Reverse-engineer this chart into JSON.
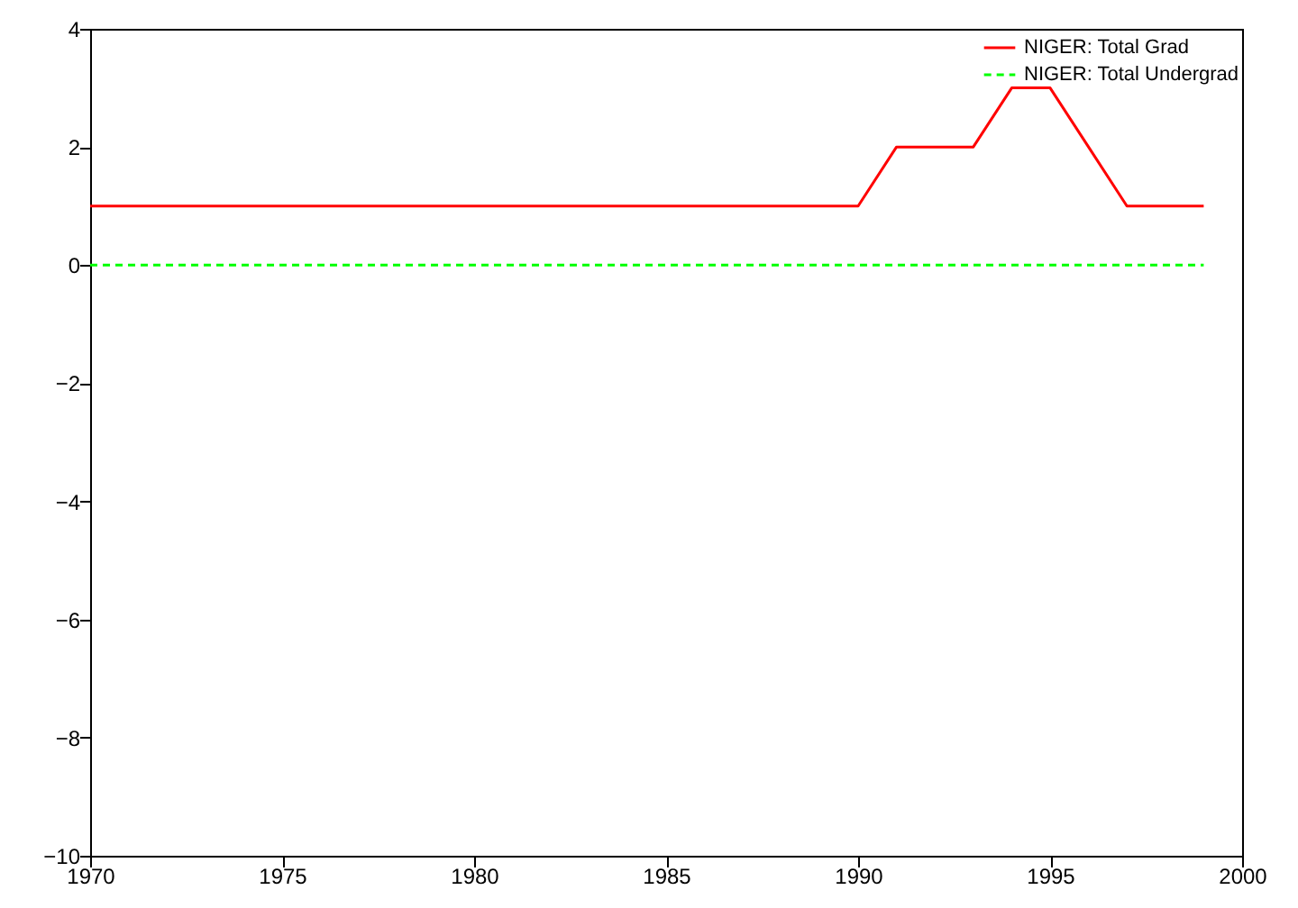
{
  "chart_data": {
    "type": "line",
    "x": [
      1970,
      1971,
      1972,
      1973,
      1974,
      1975,
      1976,
      1977,
      1978,
      1979,
      1980,
      1981,
      1982,
      1983,
      1984,
      1985,
      1986,
      1987,
      1988,
      1989,
      1990,
      1991,
      1992,
      1993,
      1994,
      1995,
      1996,
      1997,
      1998,
      1999
    ],
    "series": [
      {
        "name": "NIGER: Total Grad",
        "color": "#ff0000",
        "line_style": "solid",
        "values": [
          1,
          1,
          1,
          1,
          1,
          1,
          1,
          1,
          1,
          1,
          1,
          1,
          1,
          1,
          1,
          1,
          1,
          1,
          1,
          1,
          1,
          2,
          2,
          2,
          3,
          3,
          2,
          1,
          1,
          1
        ]
      },
      {
        "name": "NIGER: Total Undergrad",
        "color": "#00ff00",
        "line_style": "dashed",
        "values": [
          0,
          0,
          0,
          0,
          0,
          0,
          0,
          0,
          0,
          0,
          0,
          0,
          0,
          0,
          0,
          0,
          0,
          0,
          0,
          0,
          0,
          0,
          0,
          0,
          0,
          0,
          0,
          0,
          0,
          0
        ]
      }
    ],
    "xlim": [
      1970,
      2000
    ],
    "xticks": [
      1970,
      1975,
      1980,
      1985,
      1990,
      1995,
      2000
    ],
    "ylim": [
      -10,
      4
    ],
    "yticks": [
      -10,
      -8,
      -6,
      -4,
      -2,
      0,
      2,
      4
    ],
    "grid": false,
    "legend": "top right",
    "marker": "none"
  }
}
